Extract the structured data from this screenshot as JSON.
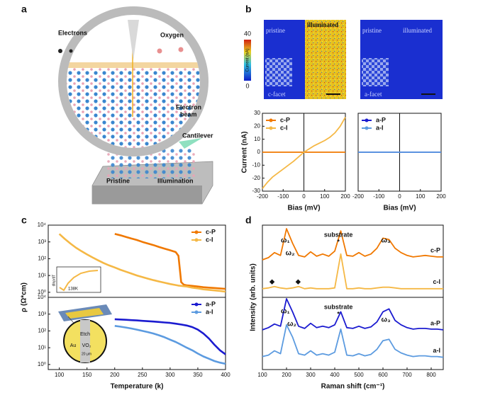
{
  "panel_labels": [
    "a",
    "b",
    "c",
    "d"
  ],
  "illustration": {
    "electrons": "Electrons",
    "oxygen": "Oxygen",
    "electron_beam": [
      "Electron",
      "beam"
    ],
    "cantilever": "Cantilever",
    "pristine": "Pristine",
    "illumination": "Illumination"
  },
  "maps": {
    "colorbar": {
      "label": "Current (nA)",
      "ticks": [
        0,
        40
      ]
    },
    "left": {
      "left_label": "pristine",
      "right_label": "illuminated",
      "facet": "c-facet"
    },
    "right": {
      "left_label": "pristine",
      "right_label": "illuminated",
      "facet": "a-facet"
    }
  },
  "panel_c": {
    "ylabel": "ρ (Ω*cm)",
    "inset": {
      "ylabel": "dlnρ/dT",
      "note": "138K"
    },
    "device": {
      "etch": "Etch",
      "au": "Au",
      "vo2": "VO₂",
      "scale": "20 μm"
    }
  },
  "panel_d": {
    "ylabel": "Intensity (arb. units)"
  },
  "chart_data": [
    {
      "type": "line",
      "xlabel": "Bias (mV)",
      "ylabel": "Current (nA)",
      "legend": "upper left",
      "x": [
        -200,
        -175,
        -150,
        -125,
        -100,
        -75,
        -50,
        -25,
        0,
        25,
        50,
        75,
        100,
        125,
        150,
        175,
        200
      ],
      "series": [
        {
          "name": "c-P",
          "color": "#f07800",
          "values": [
            0,
            0,
            0,
            0,
            0,
            0,
            0,
            0,
            0,
            0,
            0,
            0,
            0,
            0,
            0,
            0,
            0
          ]
        },
        {
          "name": "c-I",
          "color": "#f5b845",
          "values": [
            -28,
            -23,
            -19,
            -16,
            -13,
            -10,
            -7,
            -3.5,
            0,
            2.5,
            5,
            7,
            9,
            11.5,
            15,
            20,
            27
          ]
        }
      ],
      "xlim": [
        -200,
        200
      ],
      "xticks": [
        -200,
        -100,
        0,
        100,
        200
      ],
      "ylim": [
        -30,
        30
      ],
      "yticks": [
        -30,
        -20,
        -10,
        0,
        10,
        20,
        30
      ]
    },
    {
      "type": "line",
      "xlabel": "Bias (mV)",
      "legend": "upper left",
      "x": [
        -200,
        -175,
        -150,
        -125,
        -100,
        -75,
        -50,
        -25,
        0,
        25,
        50,
        75,
        100,
        125,
        150,
        175,
        200
      ],
      "series": [
        {
          "name": "a-P",
          "color": "#1b1bd0",
          "values": [
            0,
            0,
            0,
            0,
            0,
            0,
            0,
            0,
            0,
            0,
            0,
            0,
            0,
            0,
            0,
            0,
            0
          ]
        },
        {
          "name": "a-I",
          "color": "#5c9be0",
          "values": [
            0,
            0,
            0,
            0,
            0,
            0,
            0,
            0,
            0,
            0,
            0,
            0,
            0,
            0,
            0,
            0,
            0
          ]
        }
      ],
      "xlim": [
        -200,
        200
      ],
      "xticks": [
        -200,
        -100,
        0,
        100,
        200
      ],
      "ylim": [
        -30,
        30
      ]
    },
    {
      "type": "line",
      "legend": "upper right",
      "yscale": "log",
      "x": [
        100,
        110,
        120,
        130,
        140,
        150,
        160,
        170,
        180,
        190,
        200,
        210,
        220,
        230,
        240,
        250,
        260,
        270,
        280,
        290,
        300,
        310,
        315,
        320,
        325,
        330,
        340,
        350,
        360,
        370,
        380,
        390,
        400
      ],
      "series": [
        {
          "name": "c-P",
          "color": "#f07800",
          "values": [
            null,
            null,
            null,
            null,
            null,
            null,
            null,
            null,
            null,
            null,
            3000,
            2500,
            2000,
            1600,
            1300,
            1000,
            800,
            650,
            500,
            400,
            320,
            250,
            150,
            4,
            2.8,
            2.6,
            2.4,
            2.2,
            2.0,
            1.9,
            1.8,
            1.7,
            1.6
          ]
        },
        {
          "name": "c-I",
          "color": "#f5b845",
          "values": [
            3000,
            1500,
            800,
            450,
            280,
            180,
            120,
            80,
            55,
            40,
            30,
            22,
            17,
            13,
            10,
            8,
            6.5,
            5.3,
            4.4,
            3.7,
            3.1,
            2.7,
            2.5,
            2.4,
            2.3,
            2.2,
            1.9,
            1.7,
            1.5,
            1.4,
            1.3,
            1.2,
            1.1
          ]
        }
      ],
      "xlim": [
        80,
        400
      ],
      "ylim": [
        0.5,
        10000
      ],
      "yticks": [
        {
          "value": 1,
          "label": "10⁰"
        },
        {
          "value": 10,
          "label": "10¹"
        },
        {
          "value": 100,
          "label": "10²"
        },
        {
          "value": 1000,
          "label": "10³"
        },
        {
          "value": 10000,
          "label": "10⁴"
        }
      ]
    },
    {
      "type": "line",
      "legend": "upper right",
      "yscale": "log",
      "xlabel": "Temperature (k)",
      "x": [
        100,
        110,
        120,
        130,
        140,
        150,
        160,
        170,
        180,
        190,
        200,
        210,
        220,
        230,
        240,
        250,
        260,
        270,
        280,
        290,
        300,
        310,
        320,
        330,
        340,
        350,
        360,
        370,
        380,
        390,
        400
      ],
      "series": [
        {
          "name": "a-P",
          "color": "#1b1bd0",
          "values": [
            null,
            null,
            null,
            null,
            null,
            null,
            null,
            null,
            null,
            null,
            500,
            480,
            460,
            440,
            420,
            400,
            380,
            360,
            340,
            320,
            300,
            270,
            240,
            210,
            170,
            120,
            70,
            35,
            15,
            7,
            4
          ]
        },
        {
          "name": "a-I",
          "color": "#5c9be0",
          "values": [
            null,
            null,
            null,
            null,
            null,
            null,
            null,
            null,
            null,
            null,
            200,
            180,
            160,
            140,
            120,
            100,
            85,
            70,
            55,
            42,
            30,
            22,
            15,
            10,
            7,
            4.5,
            3,
            2.2,
            1.6,
            1.3,
            1.1
          ]
        }
      ],
      "xlim": [
        80,
        400
      ],
      "xticks": [
        100,
        150,
        200,
        250,
        300,
        350,
        400
      ],
      "ylim": [
        0.5,
        10000
      ],
      "yticks": [
        {
          "value": 1,
          "label": "10⁰"
        },
        {
          "value": 10,
          "label": "10¹"
        },
        {
          "value": 100,
          "label": "10²"
        },
        {
          "value": 1000,
          "label": "10³"
        },
        {
          "value": 10000,
          "label": "10⁴"
        }
      ]
    },
    {
      "type": "line",
      "legend": "inline",
      "x": [
        100,
        125,
        150,
        175,
        200,
        225,
        250,
        275,
        300,
        325,
        350,
        375,
        400,
        425,
        450,
        475,
        500,
        525,
        550,
        575,
        600,
        625,
        650,
        675,
        700,
        725,
        750,
        775,
        800,
        825,
        850
      ],
      "series": [
        {
          "name": "c-P",
          "color": "#f07800",
          "values": [
            52,
            55,
            62,
            58,
            95,
            75,
            58,
            56,
            63,
            57,
            60,
            57,
            64,
            92,
            58,
            57,
            62,
            57,
            60,
            68,
            82,
            80,
            68,
            62,
            58,
            56,
            57,
            58,
            57,
            56,
            56
          ]
        },
        {
          "name": "c-I",
          "color": "#f5b845",
          "values": [
            12,
            13,
            15,
            13,
            12,
            13,
            15,
            12,
            13,
            12,
            12,
            12,
            13,
            60,
            12,
            12,
            13,
            12,
            12,
            13,
            14,
            14,
            13,
            12,
            12,
            12,
            12,
            12,
            12,
            12,
            12
          ]
        }
      ],
      "annotations": [
        "ω₁",
        "ω₂",
        "substrate",
        "*",
        "ω₃",
        "◆",
        "◆"
      ],
      "xlim": [
        100,
        850
      ],
      "ylim": [
        0,
        100
      ]
    },
    {
      "type": "line",
      "legend": "inline",
      "xlabel": "Raman shift (cm⁻¹)",
      "x": [
        100,
        125,
        150,
        175,
        200,
        225,
        250,
        275,
        300,
        325,
        350,
        375,
        400,
        425,
        450,
        475,
        500,
        525,
        550,
        575,
        600,
        625,
        650,
        675,
        700,
        725,
        750,
        775,
        800,
        825,
        850
      ],
      "series": [
        {
          "name": "a-P",
          "color": "#1b1bd0",
          "values": [
            55,
            58,
            63,
            60,
            98,
            80,
            60,
            57,
            64,
            58,
            60,
            58,
            62,
            80,
            58,
            57,
            60,
            57,
            59,
            66,
            80,
            84,
            68,
            62,
            58,
            56,
            57,
            57,
            56,
            56,
            55
          ]
        },
        {
          "name": "a-I",
          "color": "#5c9be0",
          "values": [
            18,
            20,
            26,
            22,
            62,
            45,
            22,
            20,
            26,
            20,
            22,
            20,
            24,
            56,
            20,
            19,
            22,
            19,
            21,
            28,
            40,
            42,
            28,
            23,
            20,
            18,
            19,
            19,
            18,
            18,
            17
          ]
        }
      ],
      "annotations": [
        "ω₁",
        "ω₂",
        "substrate",
        "*",
        "ω₃"
      ],
      "xlim": [
        100,
        850
      ],
      "xticks": [
        100,
        200,
        300,
        400,
        500,
        600,
        700,
        800
      ],
      "ylim": [
        0,
        100
      ]
    }
  ]
}
